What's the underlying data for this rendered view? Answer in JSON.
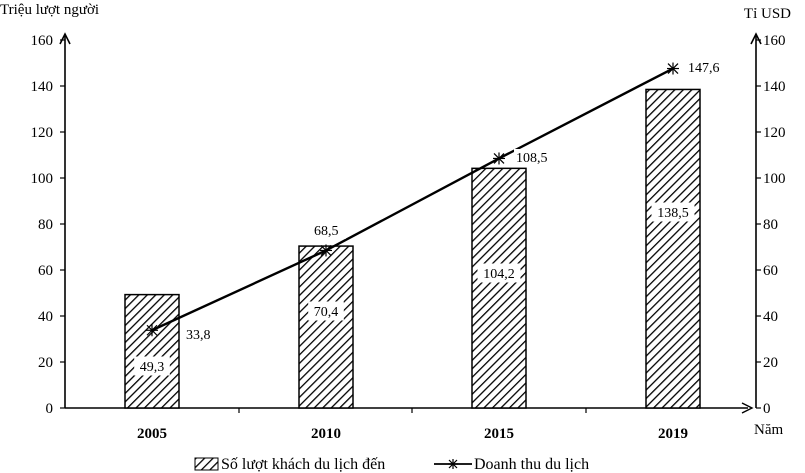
{
  "chart_data": {
    "type": "bar",
    "categories": [
      "2005",
      "2010",
      "2015",
      "2019"
    ],
    "series": [
      {
        "name": "Số lượt khách du lịch đến",
        "kind": "bar",
        "axis": "left",
        "values": [
          49.3,
          70.4,
          104.2,
          138.5
        ],
        "labels": [
          "49,3",
          "70,4",
          "104,2",
          "138,5"
        ]
      },
      {
        "name": "Doanh thu du lịch",
        "kind": "line",
        "axis": "right",
        "marker": "asterisk",
        "values": [
          33.8,
          68.5,
          108.5,
          147.6
        ],
        "labels": [
          "33,8",
          "68,5",
          "108,5",
          "147,6"
        ]
      }
    ],
    "ylabel_left": "Triệu lượt người",
    "ylabel_right": "Tỉ USD",
    "xlabel": "Năm",
    "ylim": [
      0,
      160
    ],
    "yticks": [
      "0",
      "20",
      "40",
      "60",
      "80",
      "100",
      "120",
      "140",
      "160"
    ],
    "bar_fill": "diagonal-hatch",
    "line_color": "#000000",
    "legend_position": "bottom",
    "grid": false
  }
}
